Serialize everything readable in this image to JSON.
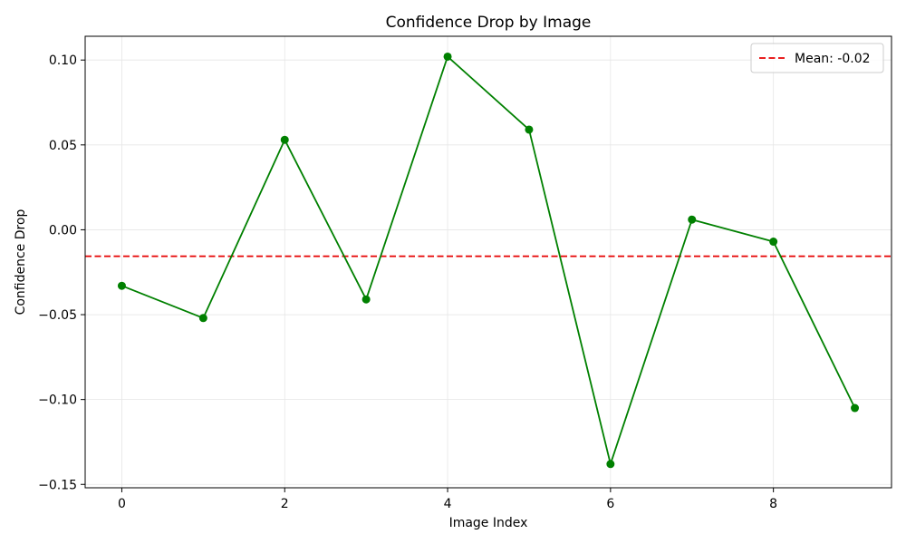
{
  "chart_data": {
    "type": "line",
    "title": "Confidence Drop by Image",
    "xlabel": "Image Index",
    "ylabel": "Confidence Drop",
    "xlim": [
      -0.45,
      9.45
    ],
    "ylim": [
      -0.152,
      0.114
    ],
    "x_ticks": [
      0,
      2,
      4,
      6,
      8
    ],
    "x_tick_labels": [
      "0",
      "2",
      "4",
      "6",
      "8"
    ],
    "y_ticks": [
      -0.15,
      -0.1,
      -0.05,
      0.0,
      0.05,
      0.1
    ],
    "y_tick_labels": [
      "−0.15",
      "−0.10",
      "−0.05",
      "0.00",
      "0.05",
      "0.10"
    ],
    "grid": true,
    "series": [
      {
        "x": [
          0,
          1,
          2,
          3,
          4,
          5,
          6,
          7,
          8,
          9
        ],
        "values": [
          -0.033,
          -0.052,
          0.053,
          -0.041,
          0.102,
          0.059,
          -0.138,
          0.006,
          -0.007,
          -0.105
        ],
        "color": "#008000",
        "marker": "circle"
      }
    ],
    "reference_lines": [
      {
        "orientation": "horizontal",
        "value": -0.0156,
        "style": "dashed",
        "color": "#e60000",
        "label": "Mean: -0.02"
      }
    ],
    "legend": {
      "position": "top-right",
      "entries": [
        "Mean: -0.02"
      ]
    }
  }
}
